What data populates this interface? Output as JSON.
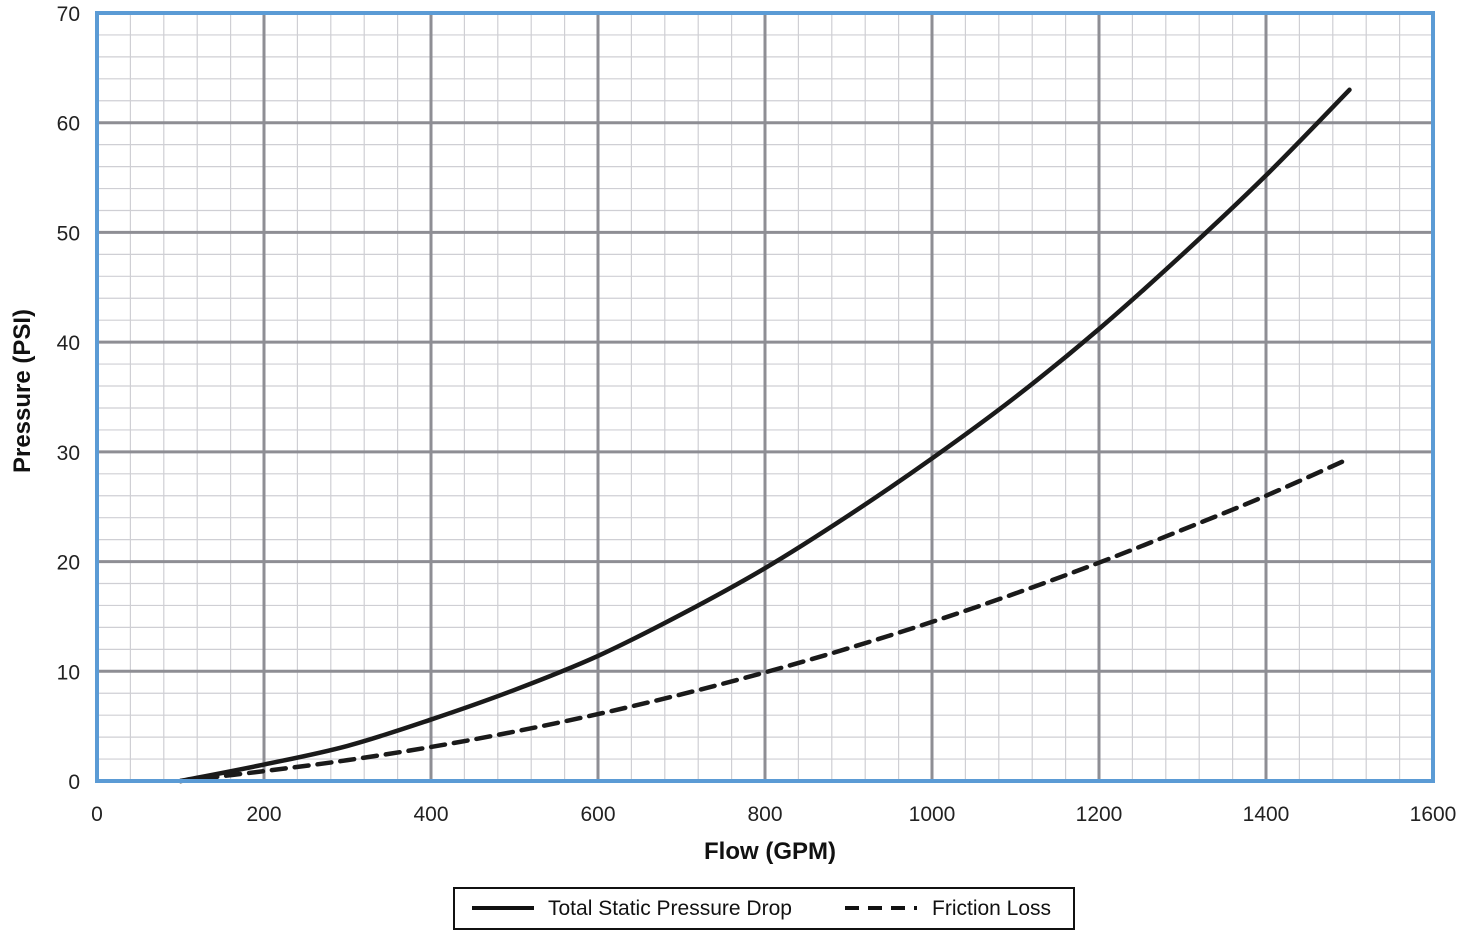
{
  "chart_data": {
    "type": "line",
    "title": "",
    "xlabel": "Flow (GPM)",
    "ylabel": "Pressure (PSI)",
    "xlim": [
      0,
      1600
    ],
    "ylim": [
      0,
      70
    ],
    "x_ticks": [
      0,
      200,
      400,
      600,
      800,
      1000,
      1200,
      1400,
      1600
    ],
    "y_ticks": [
      0,
      10,
      20,
      30,
      40,
      50,
      60,
      70
    ],
    "x_tick_labels": [
      "0",
      "200",
      "400",
      "600",
      "800",
      "1000",
      "1200",
      "1400",
      "1600"
    ],
    "y_tick_labels": [
      "0",
      "10",
      "20",
      "30",
      "40",
      "50",
      "60",
      "70"
    ],
    "grid": "major and minor",
    "legend_position": "bottom-center",
    "colors": {
      "frame": "#5b9bd5",
      "major_grid": "#8e8e94",
      "minor_grid": "#cfcfd4",
      "line": "#1a1a1a"
    },
    "series": [
      {
        "name": "Total Static Pressure Drop",
        "style": "solid",
        "x": [
          100,
          200,
          300,
          400,
          500,
          600,
          700,
          800,
          900,
          1000,
          1100,
          1200,
          1300,
          1400,
          1500
        ],
        "y": [
          0,
          1.5,
          3.2,
          5.6,
          8.3,
          11.4,
          15.2,
          19.4,
          24.2,
          29.4,
          35.0,
          41.2,
          48.0,
          55.2,
          63.0
        ]
      },
      {
        "name": "Friction Loss",
        "style": "dashed",
        "x": [
          100,
          200,
          300,
          400,
          500,
          600,
          700,
          800,
          900,
          1000,
          1100,
          1200,
          1300,
          1400,
          1500
        ],
        "y": [
          0,
          0.9,
          1.9,
          3.1,
          4.5,
          6.1,
          7.9,
          9.9,
          12.1,
          14.5,
          17.1,
          19.9,
          22.9,
          26.0,
          29.4
        ]
      }
    ]
  }
}
